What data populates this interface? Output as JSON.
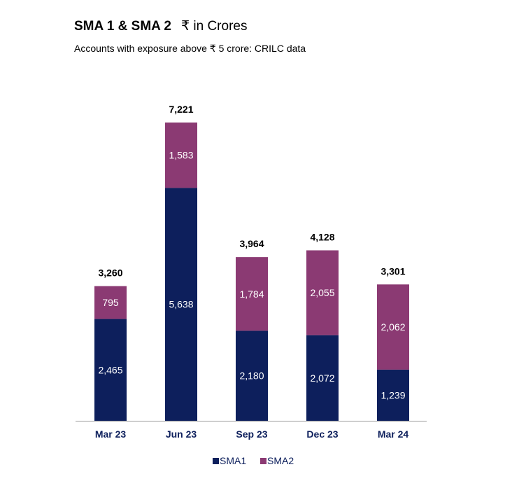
{
  "title": "SMA 1 & SMA 2",
  "unit": "₹ in Crores",
  "subtitle": "Accounts with exposure above ₹ 5 crore: CRILC data",
  "chart_data": {
    "type": "bar",
    "stacked": true,
    "categories": [
      "Mar 23",
      "Jun 23",
      "Sep 23",
      "Dec 23",
      "Mar 24"
    ],
    "series": [
      {
        "name": "SMA1",
        "color": "#0d1f5c",
        "values": [
          2465,
          5638,
          2180,
          2072,
          1239
        ],
        "labels": [
          "2,465",
          "5,638",
          "2,180",
          "2,072",
          "1,239"
        ]
      },
      {
        "name": "SMA2",
        "color": "#8b3a73",
        "values": [
          795,
          1583,
          1784,
          2055,
          2062
        ],
        "labels": [
          "795",
          "1,583",
          "1,784",
          "2,055",
          "2,062"
        ]
      }
    ],
    "totals": [
      3260,
      7221,
      3964,
      4128,
      3301
    ],
    "total_labels": [
      "3,260",
      "7,221",
      "3,964",
      "4,128",
      "3,301"
    ],
    "legend_position": "bottom",
    "grid": false
  }
}
